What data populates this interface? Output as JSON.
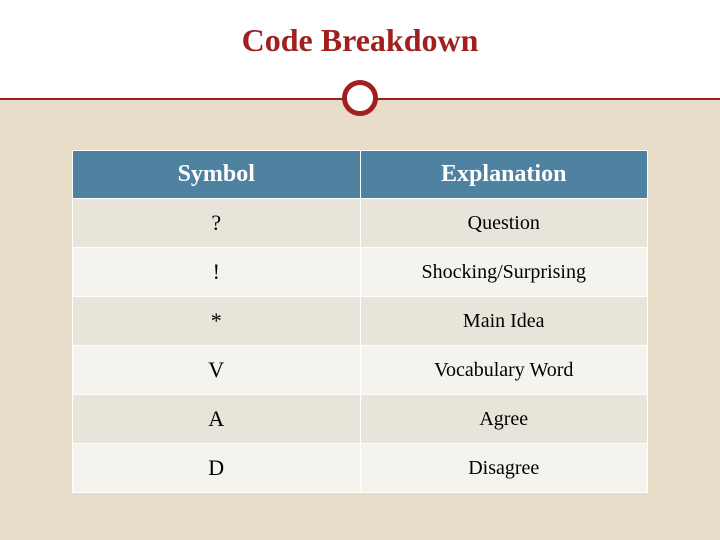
{
  "title": "Code Breakdown",
  "colors": {
    "accent": "#a02020",
    "header_bg": "#4f81a0",
    "header_text": "#ffffff",
    "row_odd": "#e8e4da",
    "row_even": "#f5f3ee",
    "beige": "#e8ddc8",
    "page_bg": "#ffffff"
  },
  "table": {
    "type": "table",
    "columns": [
      "Symbol",
      "Explanation"
    ],
    "column_widths": [
      "50%",
      "50%"
    ],
    "header_fontsize": 24,
    "cell_fontsize": 20,
    "symbol_fontsize": 22,
    "rows": [
      {
        "symbol": "?",
        "explanation": "Question"
      },
      {
        "symbol": "!",
        "explanation": "Shocking/Surprising"
      },
      {
        "symbol": "*",
        "explanation": "Main Idea"
      },
      {
        "symbol": "V",
        "explanation": "Vocabulary Word"
      },
      {
        "symbol": "A",
        "explanation": "Agree"
      },
      {
        "symbol": "D",
        "explanation": "Disagree"
      }
    ]
  },
  "title_fontsize": 32
}
